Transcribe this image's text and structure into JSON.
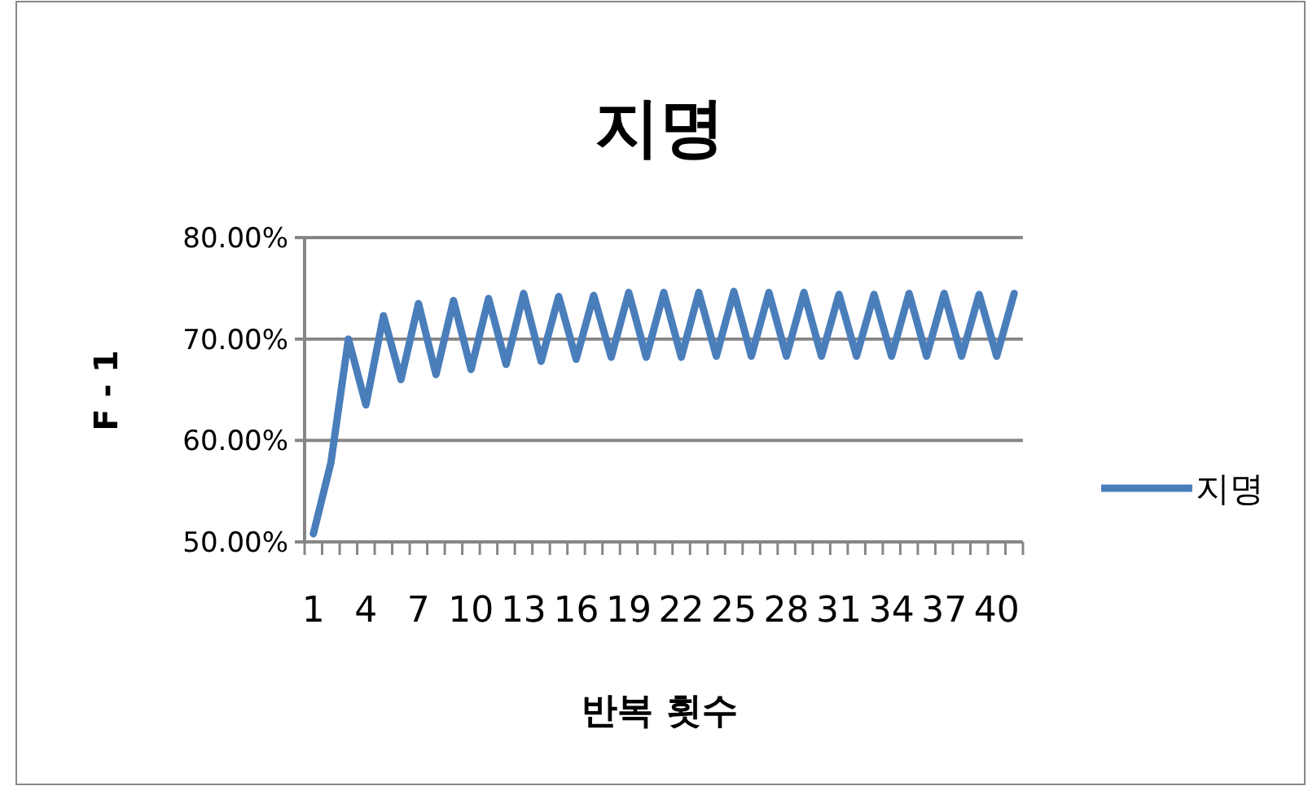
{
  "chart_data": {
    "type": "line",
    "title": "지명",
    "xlabel": "반복 횟수",
    "ylabel": "F - 1",
    "categories": [
      "1",
      null,
      null,
      "4",
      null,
      null,
      "7",
      null,
      null,
      "10",
      null,
      null,
      "13",
      null,
      null,
      "16",
      null,
      null,
      "19",
      null,
      null,
      "22",
      null,
      null,
      "25",
      null,
      null,
      "28",
      null,
      null,
      "31",
      null,
      null,
      "34",
      null,
      null,
      "37",
      null,
      null,
      "40",
      null
    ],
    "series": [
      {
        "name": "지명",
        "color": "#4a7ebb",
        "values": [
          50.8,
          57.8,
          70,
          63.5,
          72.3,
          66,
          73.5,
          66.5,
          73.8,
          67,
          74,
          67.5,
          74.5,
          67.8,
          74.2,
          68,
          74.3,
          68.2,
          74.6,
          68.2,
          74.6,
          68.2,
          74.6,
          68.3,
          74.7,
          68.3,
          74.6,
          68.3,
          74.6,
          68.3,
          74.4,
          68.3,
          74.4,
          68.3,
          74.5,
          68.3,
          74.5,
          68.3,
          74.4,
          68.3,
          74.5
        ]
      }
    ],
    "ylim": [
      50,
      80
    ],
    "yticks": [
      {
        "value": 50,
        "label": "50.00%"
      },
      {
        "value": 60,
        "label": "60.00%"
      },
      {
        "value": 70,
        "label": "70.00%"
      },
      {
        "value": 80,
        "label": "80.00%"
      }
    ],
    "grid": "y",
    "legend": "right",
    "marker": "none",
    "line_style": "solid"
  }
}
